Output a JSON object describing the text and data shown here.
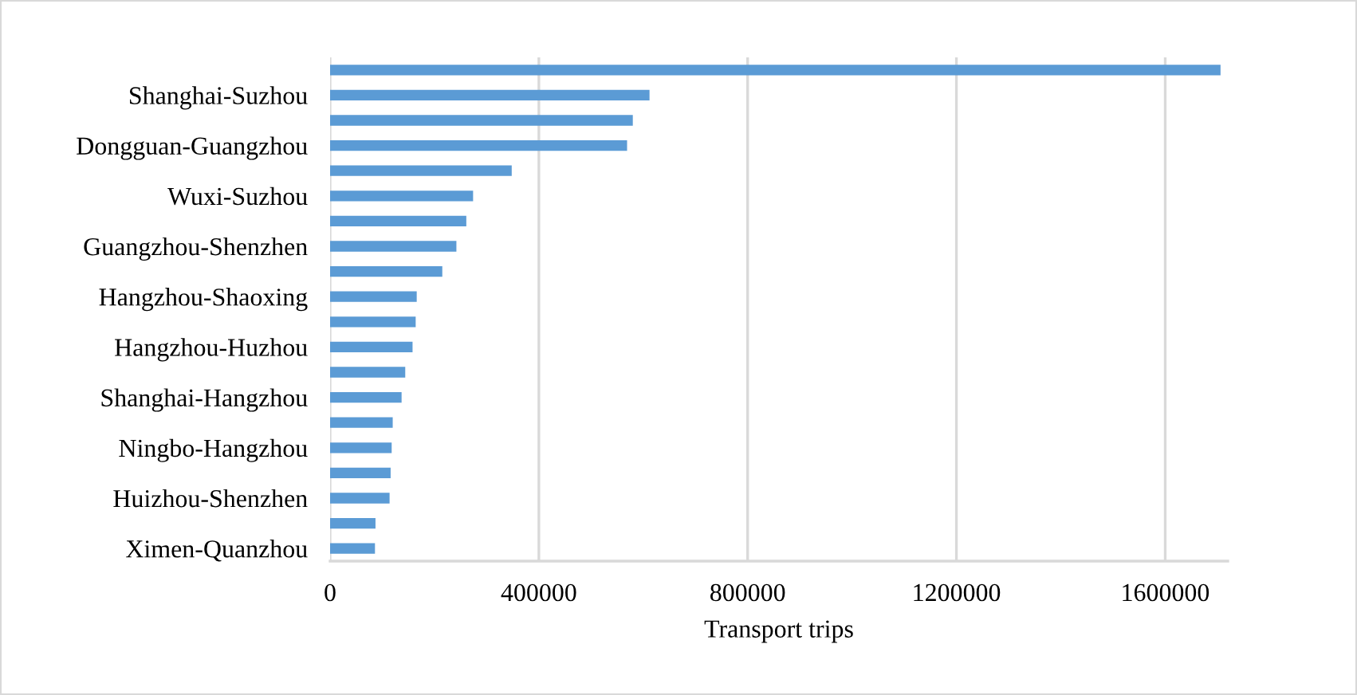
{
  "chart_data": {
    "type": "bar",
    "orientation": "horizontal",
    "xlabel": "Transport trips",
    "categories": [
      null,
      "Shanghai-Suzhou",
      null,
      "Dongguan-Guangzhou",
      null,
      "Wuxi-Suzhou",
      null,
      "Guangzhou-Shenzhen",
      null,
      "Hangzhou-Shaoxing",
      null,
      "Hangzhou-Huzhou",
      null,
      "Shanghai-Hangzhou",
      null,
      "Ningbo-Hangzhou",
      null,
      "Huizhou-Shenzhen",
      null,
      "Ximen-Quanzhou"
    ],
    "values": [
      1706000,
      612000,
      580000,
      569000,
      348000,
      274000,
      261000,
      242000,
      215000,
      166000,
      164000,
      158000,
      144000,
      137000,
      120000,
      118000,
      116000,
      114000,
      87000,
      86000
    ],
    "color": "#5b9bd5",
    "xlim": [
      0,
      1720000
    ],
    "xticks": [
      0,
      400000,
      800000,
      1200000,
      1600000
    ],
    "grid": "x",
    "legend": false
  }
}
